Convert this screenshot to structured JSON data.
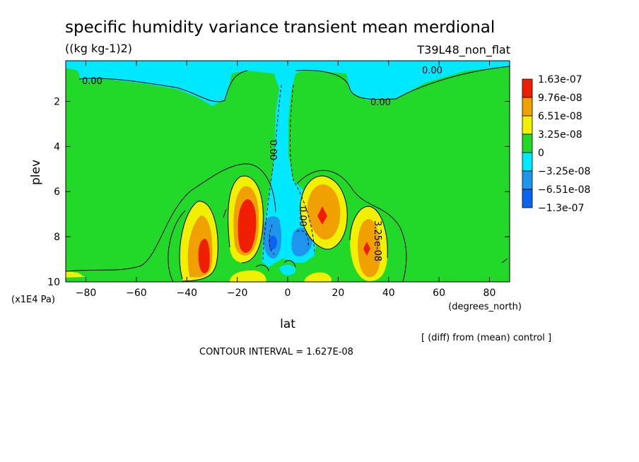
{
  "header": {
    "title": "specific humidity variance transient mean merdional",
    "units": "((kg kg-1)2)",
    "run_label": "T39L48_non_flat"
  },
  "footer": {
    "diff_note": "[ (diff) from (mean) control ]",
    "contour_interval": "CONTOUR INTERVAL = 1.627E-08"
  },
  "colors": {
    "level_neg3": "#0a64f0",
    "level_neg2": "#1e96f0",
    "level_neg1": "#00e8ff",
    "level_0": "#22d828",
    "level_1": "#f0f000",
    "level_2": "#f0a000",
    "level_3": "#f01e00"
  },
  "chart_data": {
    "type": "heatmap",
    "xlabel": "lat",
    "x_unit_label": "(degrees_north)",
    "ylabel": "plev",
    "y_unit_label": "(x1E4 Pa)",
    "xlim": [
      -88,
      88
    ],
    "ylim": [
      10,
      0.2
    ],
    "y_inverted": true,
    "xticks": [
      -80,
      -60,
      -40,
      -20,
      0,
      20,
      40,
      60,
      80
    ],
    "yticks": [
      2,
      4,
      6,
      8,
      10
    ],
    "contour_line_labels": [
      "0.00",
      "0.00",
      "0.00",
      "0.00",
      "0.00",
      "3.25e-08"
    ],
    "colorbar": {
      "labels": [
        "1.63e-07",
        "9.76e-08",
        "6.51e-08",
        "3.25e-08",
        "0",
        "−3.25e-08",
        "−6.51e-08",
        "−1.3e-07"
      ],
      "levels": [
        1.63e-07,
        9.76e-08,
        6.51e-08,
        3.25e-08,
        0,
        -3.25e-08,
        -6.51e-08,
        -1.3e-07
      ]
    },
    "features": [
      {
        "name": "upper-stratosphere-negative-band",
        "sign": "negative",
        "lat_range": [
          -88,
          88
        ],
        "plev_range": [
          0.2,
          2.5
        ]
      },
      {
        "name": "equatorial-negative-column",
        "sign": "negative",
        "lat_range": [
          -10,
          5
        ],
        "plev_range": [
          1.0,
          9.5
        ]
      },
      {
        "name": "max-south-34",
        "lat": -33,
        "plev": 8.5,
        "value": 1.63e-07
      },
      {
        "name": "max-south-17",
        "lat": -17,
        "plev": 7.5,
        "value": 1.63e-07
      },
      {
        "name": "max-north-14",
        "lat": 14,
        "plev": 7.0,
        "value": 1.3e-07
      },
      {
        "name": "max-north-31",
        "lat": 31,
        "plev": 8.5,
        "value": 1.3e-07
      },
      {
        "name": "min-equator",
        "lat": -5,
        "plev": 8.3,
        "value": -1.3e-07
      }
    ]
  }
}
